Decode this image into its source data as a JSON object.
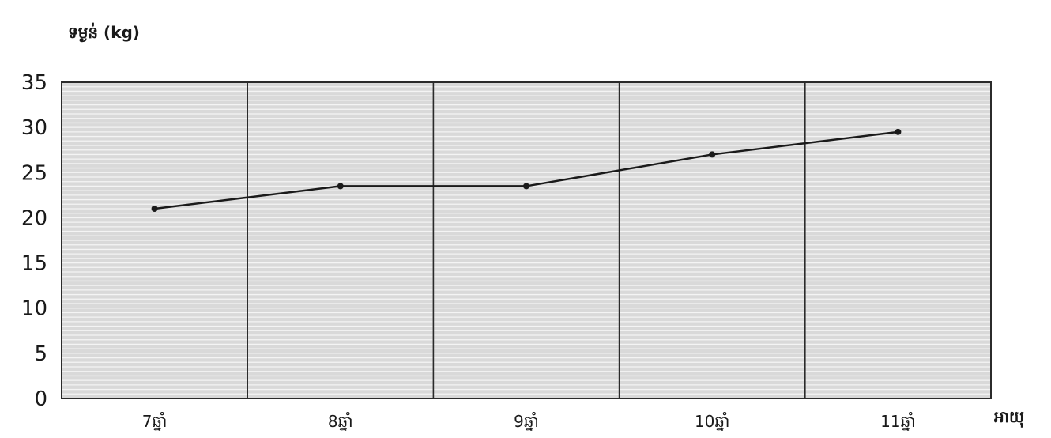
{
  "chart_data": {
    "type": "line",
    "ylabel": "ទម្ងន់ (kg)",
    "xlabel": "អាយុ",
    "categories": [
      "7ឆ្នាំ",
      "8ឆ្នាំ",
      "9ឆ្នាំ",
      "10ឆ្នាំ",
      "11ឆ្នាំ"
    ],
    "values": [
      21,
      23.5,
      23.5,
      27,
      29.5
    ],
    "ylim": [
      0,
      35
    ],
    "yticks": [
      "0",
      "5",
      "10",
      "15",
      "20",
      "25",
      "30",
      "35"
    ],
    "grid": true,
    "colors": {
      "line": "#1a1a1a",
      "plot_background": "#d9d9d9",
      "grid": "#f4f4f4",
      "frame": "#2b2b2b"
    }
  }
}
